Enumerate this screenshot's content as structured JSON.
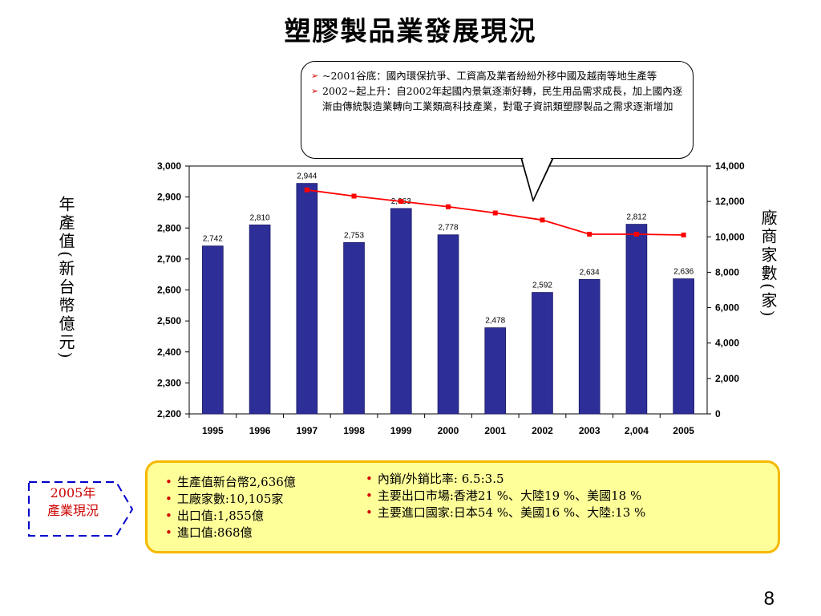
{
  "title": "塑膠製品業發展現況",
  "callout": {
    "items": [
      "~2001谷底：國內環保抗爭、工資高及業者紛紛外移中國及越南等地生產等",
      "2002~起上升：自2002年起國內景氣逐漸好轉，民生用品需求成長，加上國內逐漸由傳統製造業轉向工業類高科技產業，對電子資訊類塑膠製品之需求逐漸增加"
    ]
  },
  "chart_data": {
    "type": "bar",
    "categories": [
      "1995",
      "1996",
      "1997",
      "1998",
      "1999",
      "2000",
      "2001",
      "2002",
      "2003",
      "2,004",
      "2005"
    ],
    "series": [
      {
        "axis": "left",
        "type": "bar",
        "color": "#2e2e99",
        "values": [
          2742,
          2810,
          2944,
          2753,
          2863,
          2778,
          2478,
          2592,
          2634,
          2812,
          2636
        ],
        "value_labels": [
          "2,742",
          "2,810",
          "2,944",
          "2,753",
          "2,863",
          "2,778",
          "2,478",
          "2,592",
          "2,634",
          "2,812",
          "2,636"
        ]
      },
      {
        "axis": "right",
        "type": "line",
        "color": "#ff0000",
        "values": [
          null,
          null,
          12650,
          12300,
          12000,
          11700,
          11350,
          10950,
          10150,
          10150,
          10105
        ]
      }
    ],
    "ylabel_left": "年產值(新台幣億元)",
    "ylabel_right": "廠商家數(家)",
    "ylim_left": [
      2200,
      3000
    ],
    "ylim_right": [
      0,
      14000
    ],
    "yticks_left": [
      "2,200",
      "2,300",
      "2,400",
      "2,500",
      "2,600",
      "2,700",
      "2,800",
      "2,900",
      "3,000"
    ],
    "yticks_right": [
      "0",
      "2,000",
      "4,000",
      "6,000",
      "8,000",
      "10,000",
      "12,000",
      "14,000"
    ],
    "grid": false
  },
  "summary": {
    "left_items": [
      "生產值新台幣2,636億",
      "工廠家數:10,105家",
      "出口值:1,855億",
      "進口值:868億"
    ],
    "right_items": [
      "內銷/外銷比率: 6.5:3.5",
      "主要出口市場:香港21 %、大陸19 %、美國18 %",
      "主要進口國家:日本54 %、美國16 %、大陸:13 %"
    ]
  },
  "tag": "2005年產業現況",
  "tag_lines": [
    "2005年",
    "產業現況"
  ],
  "page_number": "8"
}
